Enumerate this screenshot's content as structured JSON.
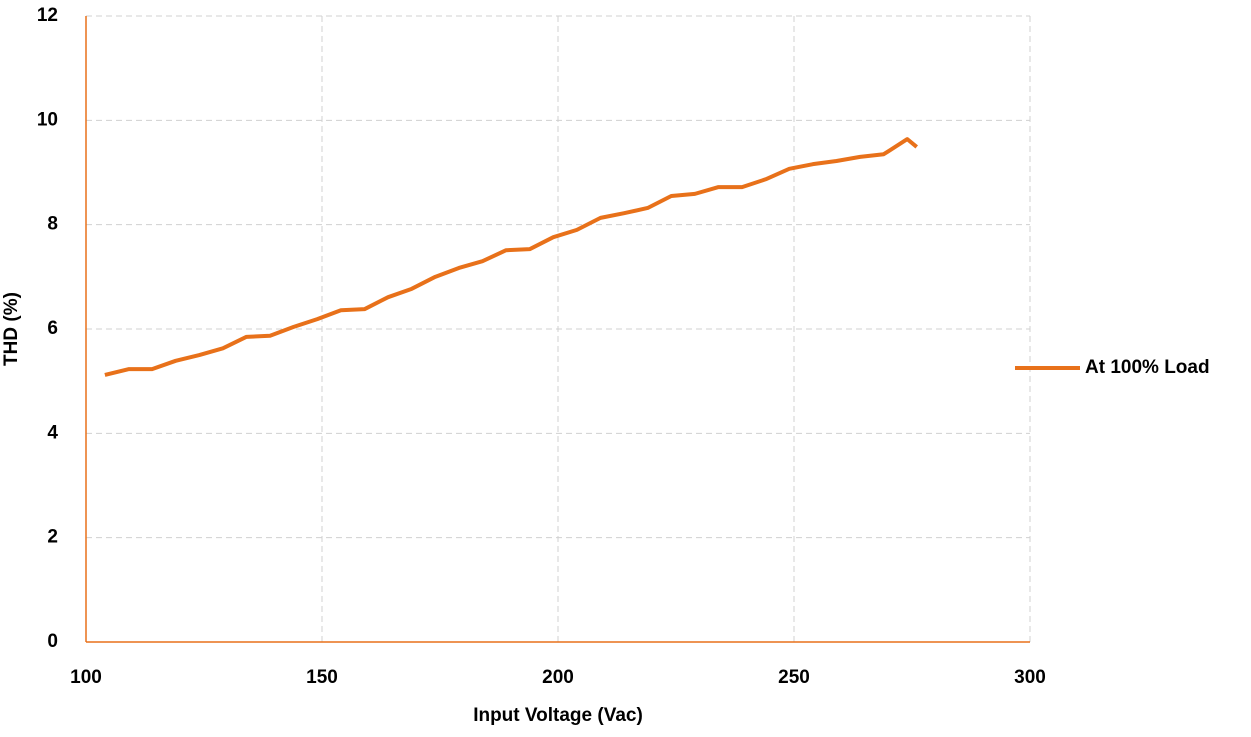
{
  "chart_data": {
    "type": "line",
    "x_label": "Input Voltage (Vac)",
    "y_label": "THD (%)",
    "x": [
      104,
      109,
      114,
      119,
      124,
      129,
      134,
      139,
      144,
      149,
      154,
      159,
      164,
      169,
      174,
      179,
      184,
      189,
      194,
      199,
      204,
      209,
      214,
      219,
      224,
      229,
      234,
      239,
      244,
      249,
      254,
      259,
      264,
      269,
      274,
      276
    ],
    "series": [
      {
        "name": "At 100% Load",
        "color": "#e8711a",
        "values": [
          5.12,
          5.23,
          5.23,
          5.39,
          5.5,
          5.63,
          5.85,
          5.87,
          6.04,
          6.19,
          6.36,
          6.38,
          6.61,
          6.77,
          7.0,
          7.17,
          7.3,
          7.51,
          7.53,
          7.76,
          7.9,
          8.13,
          8.22,
          8.32,
          8.55,
          8.59,
          8.72,
          8.72,
          8.87,
          9.07,
          9.16,
          9.22,
          9.3,
          9.35,
          9.64,
          9.49
        ]
      }
    ],
    "xlim": [
      100,
      300
    ],
    "xticks": [
      100,
      150,
      200,
      250,
      300
    ],
    "ylim": [
      0,
      12
    ],
    "yticks": [
      0,
      2,
      4,
      6,
      8,
      10,
      12
    ],
    "grid": true,
    "legend": "right"
  }
}
